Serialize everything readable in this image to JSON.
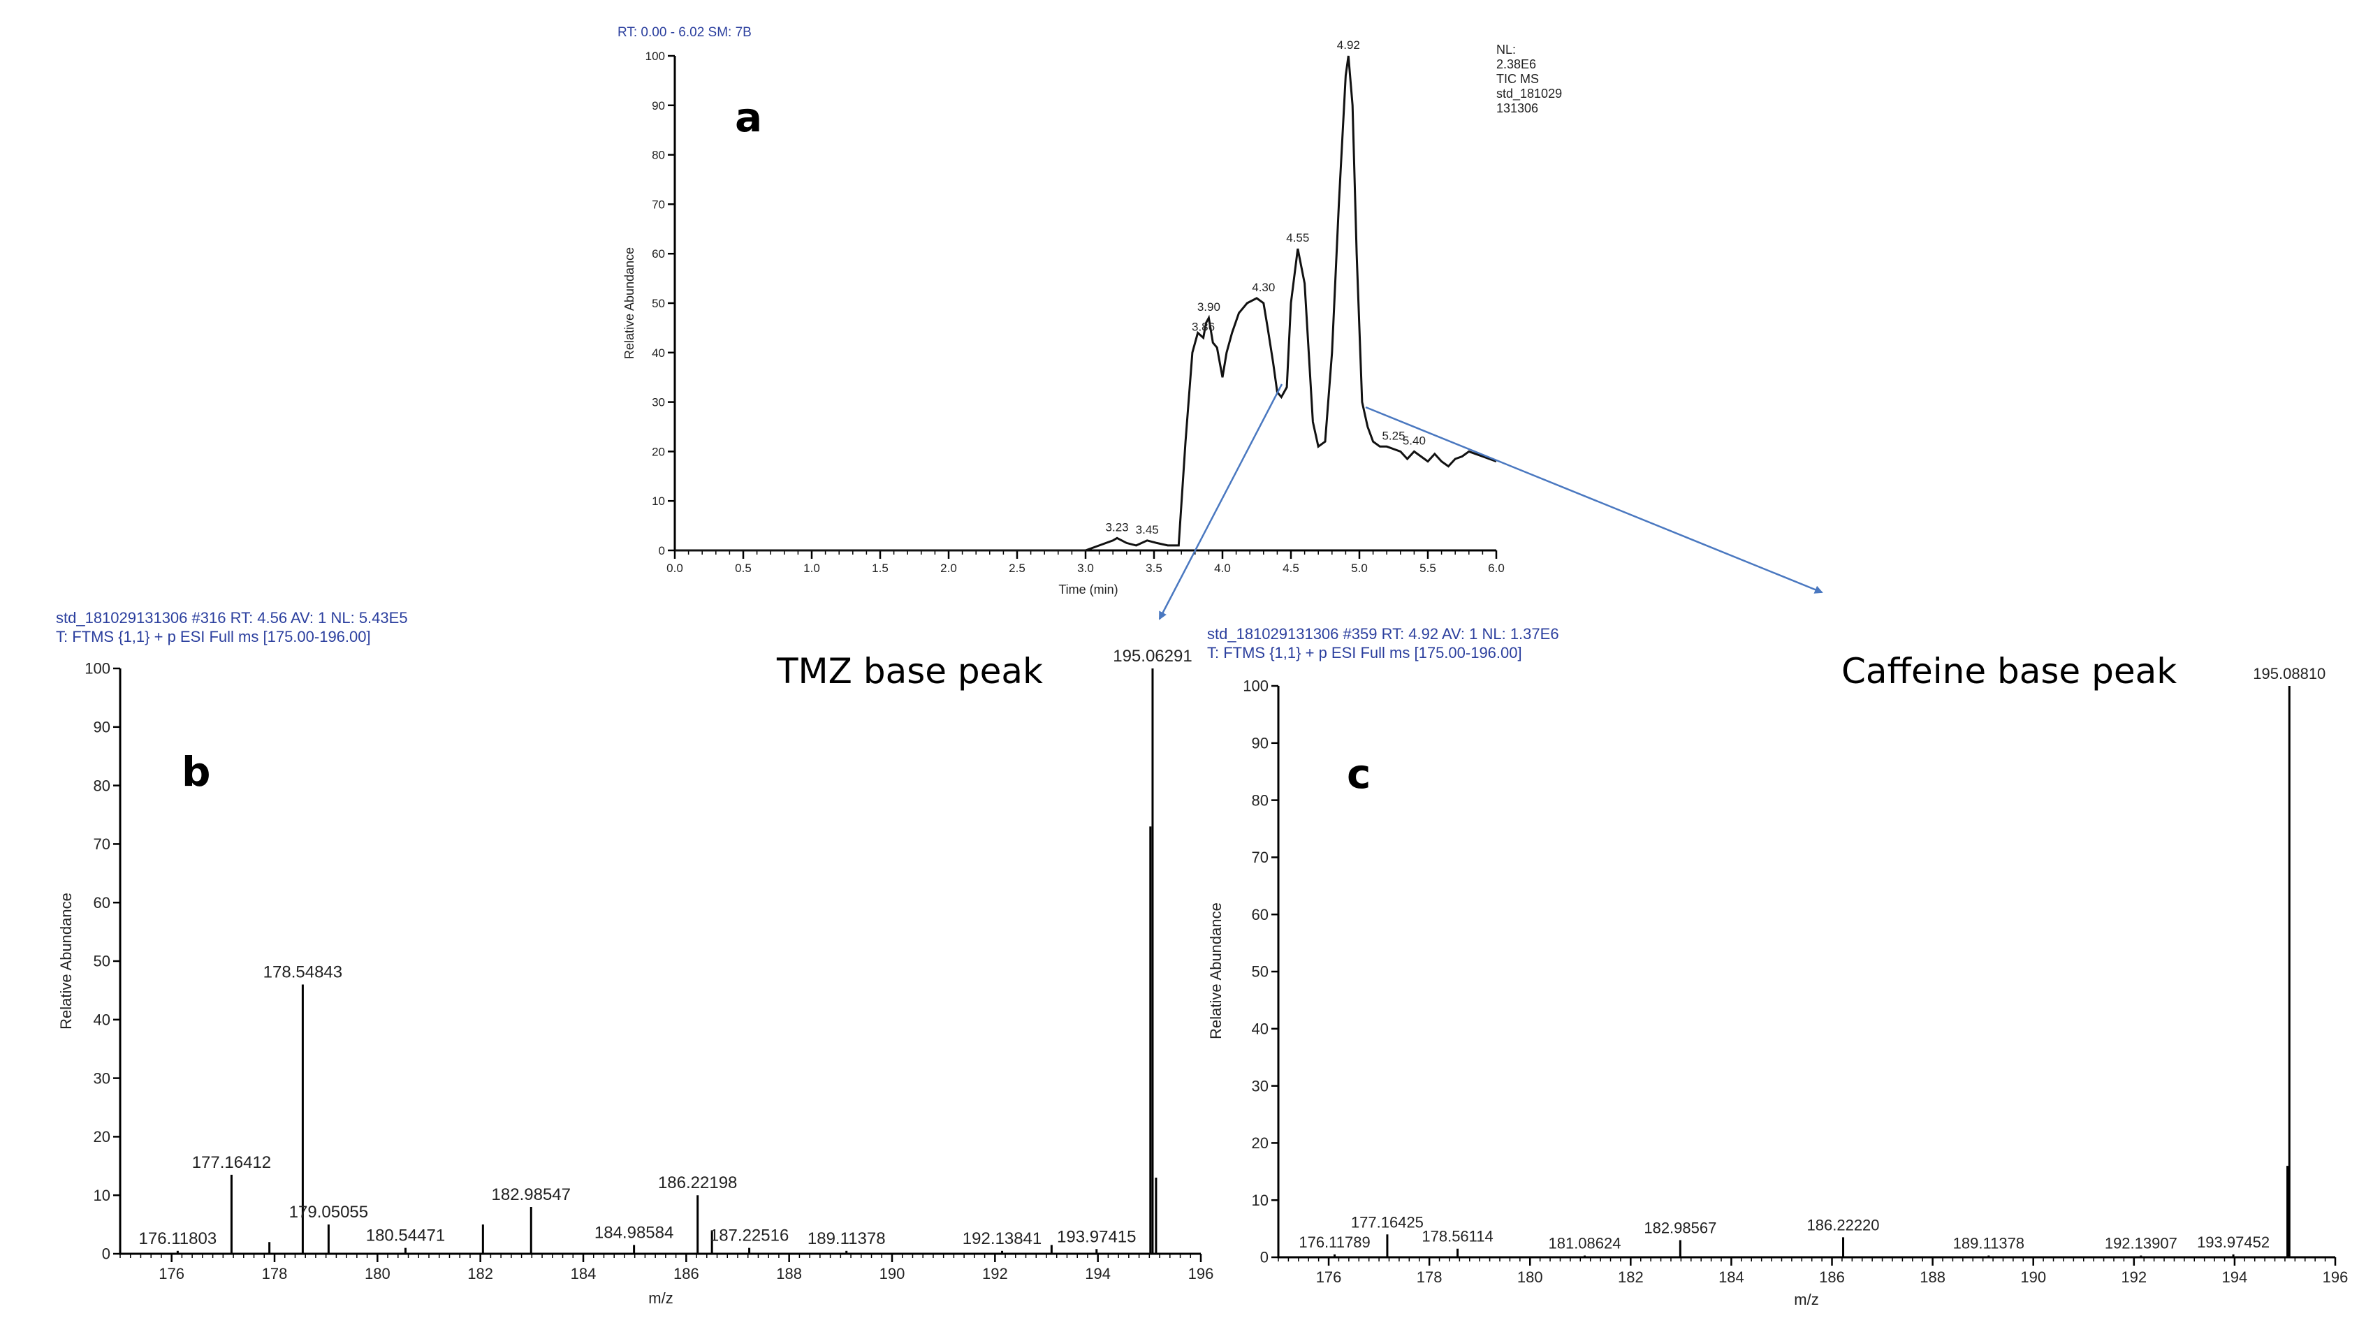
{
  "chart_data": [
    {
      "id": "a",
      "type": "line",
      "panel_letter": "a",
      "header": "RT: 0.00 - 6.02   SM: 7B",
      "info_lines": [
        "NL:",
        "2.38E6",
        "TIC  MS",
        "std_181029",
        "131306"
      ],
      "xlabel": "Time (min)",
      "ylabel": "Relative Abundance",
      "xlim": [
        0,
        6.0
      ],
      "ylim": [
        0,
        100
      ],
      "xticks": [
        "0.0",
        "0.5",
        "1.0",
        "1.5",
        "2.0",
        "2.5",
        "3.0",
        "3.5",
        "4.0",
        "4.5",
        "5.0",
        "5.5",
        "6.0"
      ],
      "yticks": [
        "0",
        "10",
        "20",
        "30",
        "40",
        "50",
        "60",
        "70",
        "80",
        "90",
        "100"
      ],
      "x": [
        0,
        3.0,
        3.1,
        3.2,
        3.23,
        3.3,
        3.37,
        3.45,
        3.52,
        3.6,
        3.68,
        3.73,
        3.78,
        3.82,
        3.86,
        3.88,
        3.9,
        3.93,
        3.96,
        4.0,
        4.03,
        4.07,
        4.12,
        4.18,
        4.25,
        4.3,
        4.33,
        4.37,
        4.4,
        4.43,
        4.47,
        4.5,
        4.55,
        4.6,
        4.63,
        4.66,
        4.7,
        4.75,
        4.8,
        4.85,
        4.9,
        4.92,
        4.95,
        4.98,
        5.02,
        5.06,
        5.1,
        5.15,
        5.2,
        5.25,
        5.3,
        5.35,
        5.4,
        5.45,
        5.5,
        5.55,
        5.6,
        5.65,
        5.7,
        5.75,
        5.8,
        5.85,
        5.9,
        6.0
      ],
      "y": [
        0,
        0,
        1,
        2,
        2.5,
        1.5,
        1,
        2,
        1.5,
        1,
        1,
        22,
        40,
        44,
        43,
        46,
        47,
        42,
        41,
        35,
        40,
        44,
        48,
        50,
        51,
        50,
        45,
        38,
        32,
        31,
        33,
        50,
        61,
        54,
        40,
        26,
        21,
        22,
        40,
        70,
        96,
        100,
        90,
        60,
        30,
        25,
        22,
        21,
        21,
        20.5,
        20,
        18.5,
        20,
        19,
        18,
        19.5,
        18,
        17,
        18.5,
        19,
        20,
        19.5,
        19,
        18
      ],
      "peak_labels": [
        {
          "x": 3.23,
          "y": 2.5,
          "label": "3.23"
        },
        {
          "x": 3.45,
          "y": 2.0,
          "label": "3.45"
        },
        {
          "x": 3.86,
          "y": 43,
          "label": "3.86"
        },
        {
          "x": 3.9,
          "y": 47,
          "label": "3.90"
        },
        {
          "x": 4.3,
          "y": 51,
          "label": "4.30"
        },
        {
          "x": 4.55,
          "y": 61,
          "label": "4.55"
        },
        {
          "x": 4.92,
          "y": 100,
          "label": "4.92"
        },
        {
          "x": 5.25,
          "y": 21,
          "label": "5.25"
        },
        {
          "x": 5.4,
          "y": 20,
          "label": "5.40"
        }
      ]
    },
    {
      "id": "b",
      "type": "bar",
      "panel_letter": "b",
      "header_lines": [
        "std_181029131306 #316   RT: 4.56   AV: 1   NL: 5.43E5",
        "T: FTMS {1,1}  + p ESI Full ms [175.00-196.00]"
      ],
      "annotation": "TMZ base peak",
      "xlabel": "m/z",
      "ylabel": "Relative Abundance",
      "xlim": [
        175,
        196
      ],
      "ylim": [
        0,
        100
      ],
      "xticks": [
        "176",
        "178",
        "180",
        "182",
        "184",
        "186",
        "188",
        "190",
        "192",
        "194",
        "196"
      ],
      "yticks": [
        "0",
        "10",
        "20",
        "30",
        "40",
        "50",
        "60",
        "70",
        "80",
        "90",
        "100"
      ],
      "x": [
        176.11803,
        177.16412,
        177.9,
        178.54843,
        179.05055,
        180.54471,
        182.05,
        182.98547,
        184.98584,
        186.22198,
        186.5,
        187.22516,
        189.11378,
        192.13841,
        193.1,
        193.97415,
        195.06291,
        195.02,
        195.13
      ],
      "values": [
        0.5,
        13.5,
        2,
        46,
        5,
        1,
        5,
        8,
        1.5,
        10,
        4,
        1,
        0.5,
        0.5,
        1.5,
        0.8,
        100,
        73,
        13
      ],
      "peak_labels": [
        {
          "x": 176.11803,
          "y": 0.5,
          "label": "176.11803"
        },
        {
          "x": 177.16412,
          "y": 13.5,
          "label": "177.16412"
        },
        {
          "x": 178.54843,
          "y": 46,
          "label": "178.54843"
        },
        {
          "x": 179.05055,
          "y": 5,
          "label": "179.05055"
        },
        {
          "x": 180.54471,
          "y": 1,
          "label": "180.54471"
        },
        {
          "x": 182.98547,
          "y": 8,
          "label": "182.98547"
        },
        {
          "x": 184.98584,
          "y": 1.5,
          "label": "184.98584"
        },
        {
          "x": 186.22198,
          "y": 10,
          "label": "186.22198"
        },
        {
          "x": 187.22516,
          "y": 1,
          "label": "187.22516"
        },
        {
          "x": 189.11378,
          "y": 0.5,
          "label": "189.11378"
        },
        {
          "x": 192.13841,
          "y": 0.5,
          "label": "192.13841"
        },
        {
          "x": 193.97415,
          "y": 0.8,
          "label": "193.97415"
        },
        {
          "x": 195.06291,
          "y": 100,
          "label": "195.06291"
        }
      ]
    },
    {
      "id": "c",
      "type": "bar",
      "panel_letter": "c",
      "header_lines": [
        "std_181029131306 #359   RT: 4.92   AV: 1   NL: 1.37E6",
        "T: FTMS {1,1}  + p ESI Full ms [175.00-196.00]"
      ],
      "annotation": "Caffeine base peak",
      "xlabel": "m/z",
      "ylabel": "Relative Abundance",
      "xlim": [
        175,
        196
      ],
      "ylim": [
        0,
        100
      ],
      "xticks": [
        "176",
        "178",
        "180",
        "182",
        "184",
        "186",
        "188",
        "190",
        "192",
        "194",
        "196"
      ],
      "yticks": [
        "0",
        "10",
        "20",
        "30",
        "40",
        "50",
        "60",
        "70",
        "80",
        "90",
        "100"
      ],
      "x": [
        176.11789,
        177.16425,
        178.56114,
        181.08624,
        182.98567,
        186.2222,
        189.11378,
        192.13907,
        193.97452,
        195.0881,
        195.05
      ],
      "values": [
        0.5,
        4,
        1.5,
        0.3,
        3,
        3.5,
        0.3,
        0.3,
        0.5,
        100,
        16
      ],
      "peak_labels": [
        {
          "x": 176.11789,
          "y": 0.5,
          "label": "176.11789"
        },
        {
          "x": 177.16425,
          "y": 4,
          "label": "177.16425"
        },
        {
          "x": 178.56114,
          "y": 1.5,
          "label": "178.56114"
        },
        {
          "x": 181.08624,
          "y": 0.3,
          "label": "181.08624"
        },
        {
          "x": 182.98567,
          "y": 3,
          "label": "182.98567"
        },
        {
          "x": 186.2222,
          "y": 3.5,
          "label": "186.22220"
        },
        {
          "x": 189.11378,
          "y": 0.3,
          "label": "189.11378"
        },
        {
          "x": 192.13907,
          "y": 0.3,
          "label": "192.13907"
        },
        {
          "x": 193.97452,
          "y": 0.5,
          "label": "193.97452"
        },
        {
          "x": 195.0881,
          "y": 100,
          "label": "195.08810"
        }
      ]
    }
  ]
}
